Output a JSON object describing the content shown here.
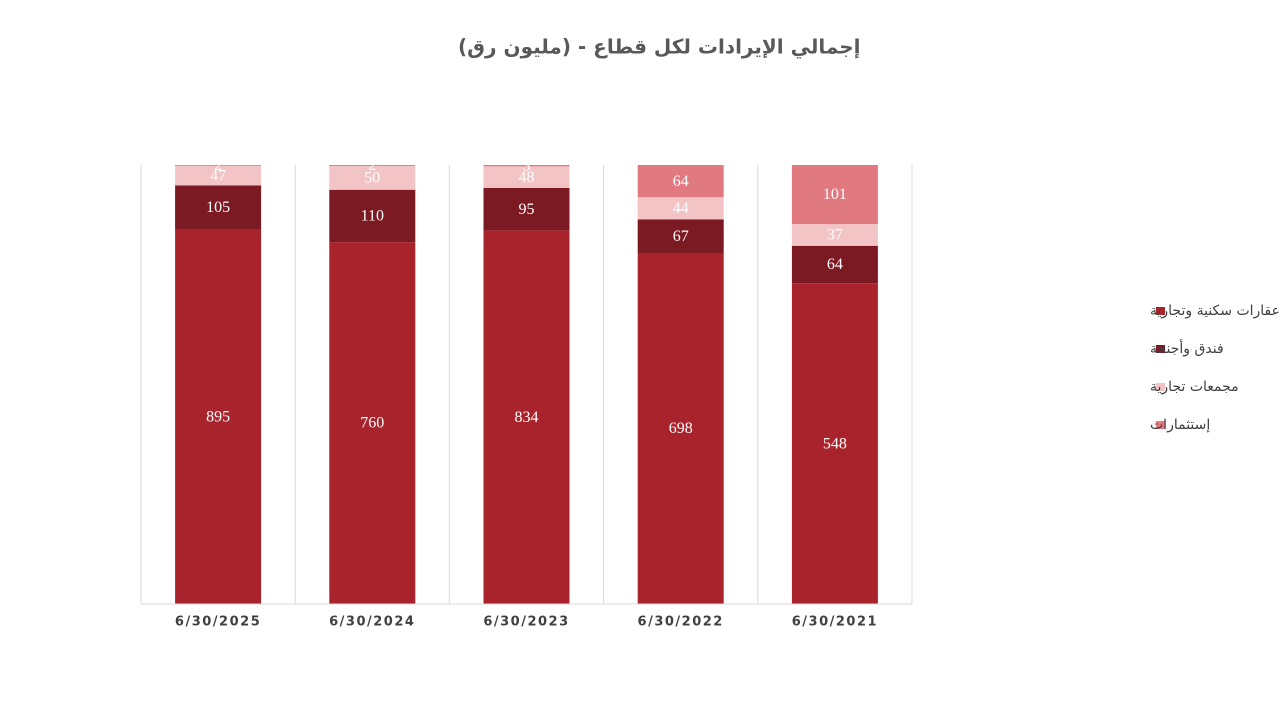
{
  "chart_data": {
    "type": "bar",
    "stacking": "percent",
    "title": "إجمالي الإيرادات لكل قطاع - (مليون رق)",
    "categories": [
      "6/30/2025",
      "6/30/2024",
      "6/30/2023",
      "6/30/2022",
      "6/30/2021"
    ],
    "series": [
      {
        "name": "عقارات سكنية وتجارية",
        "color": "#a8232b",
        "values": [
          895,
          760,
          834,
          698,
          548
        ]
      },
      {
        "name": "فندق وأجنحة",
        "color": "#7b1a22",
        "values": [
          105,
          110,
          95,
          67,
          64
        ]
      },
      {
        "name": "مجمعات تجارية",
        "color": "#f2c4c6",
        "values": [
          47,
          50,
          48,
          44,
          37
        ]
      },
      {
        "name": "إستثمارات",
        "color": "#e07a80",
        "values": [
          2,
          2,
          3,
          64,
          101
        ]
      }
    ],
    "grid": true,
    "legend": "right"
  }
}
